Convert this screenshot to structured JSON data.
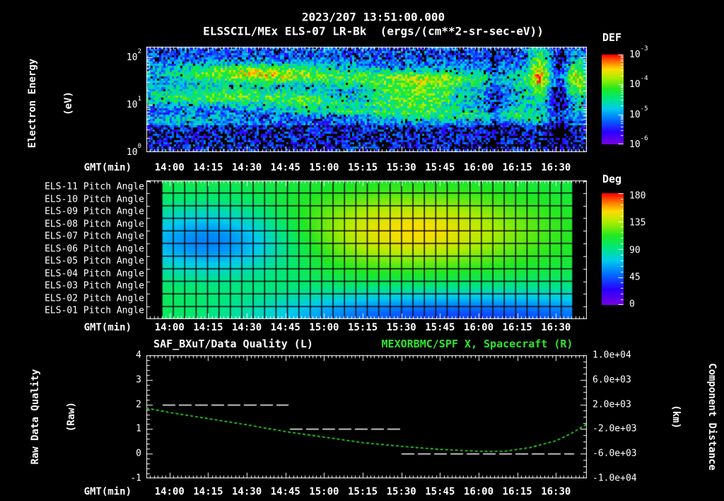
{
  "header": {
    "datetime": "2023/207 13:51:00.000",
    "subtitle": "ELSSCIL/MEx ELS-07 LR-Bk  (ergs/(cm**2-sr-sec-eV))"
  },
  "colors": {
    "background": "#000000",
    "text": "#ffffff",
    "accent_green": "#2de52d"
  },
  "time_axis": {
    "label": "GMT(min)",
    "start_gmt": "13:51",
    "end_gmt": "16:42",
    "span_min": 171,
    "major_step_min": 15,
    "first_major_offset_min": 9,
    "major_labels": [
      "14:00",
      "14:15",
      "14:30",
      "14:45",
      "15:00",
      "15:15",
      "15:30",
      "15:45",
      "16:00",
      "16:15",
      "16:30"
    ]
  },
  "panels": {
    "spectrogram": {
      "ylabel1": "Electron Energy",
      "ylabel2": "(eV)",
      "ytick_exponents": [
        "2",
        "1",
        "0"
      ],
      "colorbar": {
        "title": "DEF",
        "tick_exponents": [
          "-3",
          "-4",
          "-5",
          "-6"
        ]
      }
    },
    "pitch": {
      "row_labels": [
        "ELS-11 Pitch Angle",
        "ELS-10 Pitch Angle",
        "ELS-09 Pitch Angle",
        "ELS-08 Pitch Angle",
        "ELS-07 Pitch Angle",
        "ELS-06 Pitch Angle",
        "ELS-05 Pitch Angle",
        "ELS-04 Pitch Angle",
        "ELS-03 Pitch Angle",
        "ELS-02 Pitch Angle",
        "ELS-01 Pitch Angle"
      ],
      "colorbar": {
        "title": "Deg",
        "tick_labels": [
          "180",
          "135",
          "90",
          "45",
          "0"
        ]
      }
    },
    "timeseries": {
      "title_left": "SAF_BXuT/Data Quality (L)",
      "title_right": "MEXORBMC/SPF X, Spacecraft (R)",
      "ylabel_left1": "Raw Data Quality",
      "ylabel_left2": "(Raw)",
      "ylabel_right1": "Component Distance",
      "ylabel_right2": "(km)",
      "ytick_left": [
        "4",
        "3",
        "2",
        "1",
        "0",
        "-1"
      ],
      "ytick_right": [
        "1.0e+04",
        "6.0e+03",
        "2.0e+03",
        "-2.0e+03",
        "-6.0e+03",
        "-1.0e+04"
      ]
    }
  },
  "chart_data": [
    {
      "panel": "electron_energy_spectrogram",
      "type": "heatmap",
      "x_axis": {
        "start": "13:51",
        "end": "16:42",
        "units": "GMT(min)"
      },
      "y_axis": {
        "label": "Electron Energy (eV)",
        "scale": "log",
        "min": 1,
        "max": 165
      },
      "color_axis": {
        "title": "DEF",
        "units": "ergs/(cm**2-sr-sec-eV)",
        "scale": "log",
        "min": 1e-06,
        "max": 0.001
      },
      "field": {
        "base": 0.26,
        "noise": 0.36,
        "black_threshold": 0.1,
        "top_zone": {
          "v": 0.12,
          "delta": -0.04
        },
        "bottom_zone": {
          "v": 0.74,
          "delta": -0.12
        },
        "blobs": [
          {
            "u": 0.24,
            "v": 0.25,
            "su": 0.13,
            "sv": 0.065,
            "amp": 0.46,
            "note": "bright yellow-green band 14:15-15:00 at 20-60 eV"
          },
          {
            "u": 0.62,
            "v": 0.3,
            "su": 0.24,
            "sv": 0.055,
            "amp": 0.28,
            "note": "green band 15:00-16:30 near 30 eV"
          },
          {
            "u": 0.17,
            "v": 0.47,
            "su": 0.15,
            "sv": 0.065,
            "amp": 0.36,
            "note": "green-cyan band 13:51-14:35 near 10 eV"
          },
          {
            "u": 0.36,
            "v": 0.52,
            "su": 0.06,
            "sv": 0.05,
            "amp": 0.2
          },
          {
            "u": 0.617,
            "v": 0.47,
            "su": 0.085,
            "sv": 0.13,
            "amp": 0.4,
            "note": "broad green blob 15:10-15:45"
          },
          {
            "u": 0.78,
            "v": 0.655,
            "su": 0.14,
            "sv": 0.04,
            "amp": 0.22,
            "note": "cyan band lower right after 15:45"
          },
          {
            "u": 0.43,
            "v": 0.615,
            "su": 0.1,
            "sv": 0.022,
            "amp": 0.22,
            "note": "thin streak below main band"
          },
          {
            "u": 0.47,
            "v": 0.55,
            "su": 0.08,
            "sv": 0.018,
            "amp": 0.15
          },
          {
            "u": 0.1,
            "v": 0.7,
            "su": 0.08,
            "sv": 0.04,
            "amp": 0.16
          },
          {
            "u": 0.893,
            "v": 0.25,
            "su": 0.018,
            "sv": 0.22,
            "amp": 0.46,
            "note": "bright column near 16:18"
          },
          {
            "u": 0.978,
            "v": 0.3,
            "su": 0.02,
            "sv": 0.16,
            "amp": 0.42,
            "note": "bright column at right edge"
          },
          {
            "u": 0.85,
            "v": 0.5,
            "su": 0.015,
            "sv": 0.12,
            "amp": 0.18
          },
          {
            "u": 0.938,
            "v": 0.45,
            "su": 0.015,
            "sv": 0.5,
            "amp": -0.22,
            "note": "dark gap near 16:25"
          },
          {
            "u": 0.79,
            "v": 0.5,
            "su": 0.01,
            "sv": 0.5,
            "amp": -0.15,
            "note": "dark gap near 16:07"
          }
        ]
      }
    },
    {
      "panel": "pitch_angle_heatmap",
      "type": "heatmap",
      "rows": [
        "ELS-11",
        "ELS-10",
        "ELS-09",
        "ELS-08",
        "ELS-07",
        "ELS-06",
        "ELS-05",
        "ELS-04",
        "ELS-03",
        "ELS-02",
        "ELS-01"
      ],
      "value_units": "deg",
      "color_axis": {
        "title": "Deg",
        "min": 0,
        "max": 180
      },
      "data_start_gmt": "13:57",
      "data_end_gmt": "16:37",
      "grid_columns": 36,
      "field": {
        "base": 104,
        "blobs": [
          {
            "u": 0.6,
            "r": 4.0,
            "su": 0.21,
            "sr": 2.0,
            "amp": 47,
            "note": "pitch rises to ~150 deg on mid sensors 15:00-16:00"
          },
          {
            "u": 0.125,
            "r": 4.8,
            "su": 0.155,
            "sr": 1.9,
            "amp": -52,
            "note": "pitch ~55 deg on mid sensors 13:57-14:40"
          },
          {
            "u": 0.88,
            "r": 11.2,
            "su": 0.3,
            "sr": 1.7,
            "amp": -58,
            "note": "low pitch on bottom sensors late in pass"
          },
          {
            "u": 0.46,
            "r": 10.8,
            "su": 0.22,
            "sr": 1.4,
            "amp": -30,
            "note": "cyan dip bottom sensors mid pass"
          }
        ]
      }
    },
    {
      "panel": "quality_and_distance",
      "type": "line",
      "left_axis": {
        "label": "Raw Data Quality (Raw)",
        "min": -1,
        "max": 4
      },
      "right_axis": {
        "label": "Component Distance (km)",
        "min": -10000,
        "max": 10000
      },
      "series": [
        {
          "name": "SAF_BXuT/Data Quality",
          "axis": "left",
          "color": "#ffffff",
          "style": "dashed",
          "steps": [
            {
              "value": 2,
              "from_min": 6.3,
              "to_min": 55.2
            },
            {
              "value": 1,
              "from_min": 55.7,
              "to_min": 98.8
            },
            {
              "value": 0,
              "from_min": 99.1,
              "to_min": 166.1
            }
          ]
        },
        {
          "name": "MEXORBMC/SPF X, Spacecraft",
          "axis": "right",
          "color": "#2de52d",
          "style": "dashed",
          "points_min_km": [
            [
              0,
              1400
            ],
            [
              9,
              700
            ],
            [
              24,
              -300
            ],
            [
              39,
              -1300
            ],
            [
              54,
              -2400
            ],
            [
              69,
              -3300
            ],
            [
              84,
              -4200
            ],
            [
              99,
              -4800
            ],
            [
              114,
              -5300
            ],
            [
              129,
              -5600
            ],
            [
              139,
              -5600
            ],
            [
              149,
              -5000
            ],
            [
              159,
              -3900
            ],
            [
              165,
              -2700
            ],
            [
              171,
              -1200
            ]
          ]
        }
      ]
    }
  ]
}
